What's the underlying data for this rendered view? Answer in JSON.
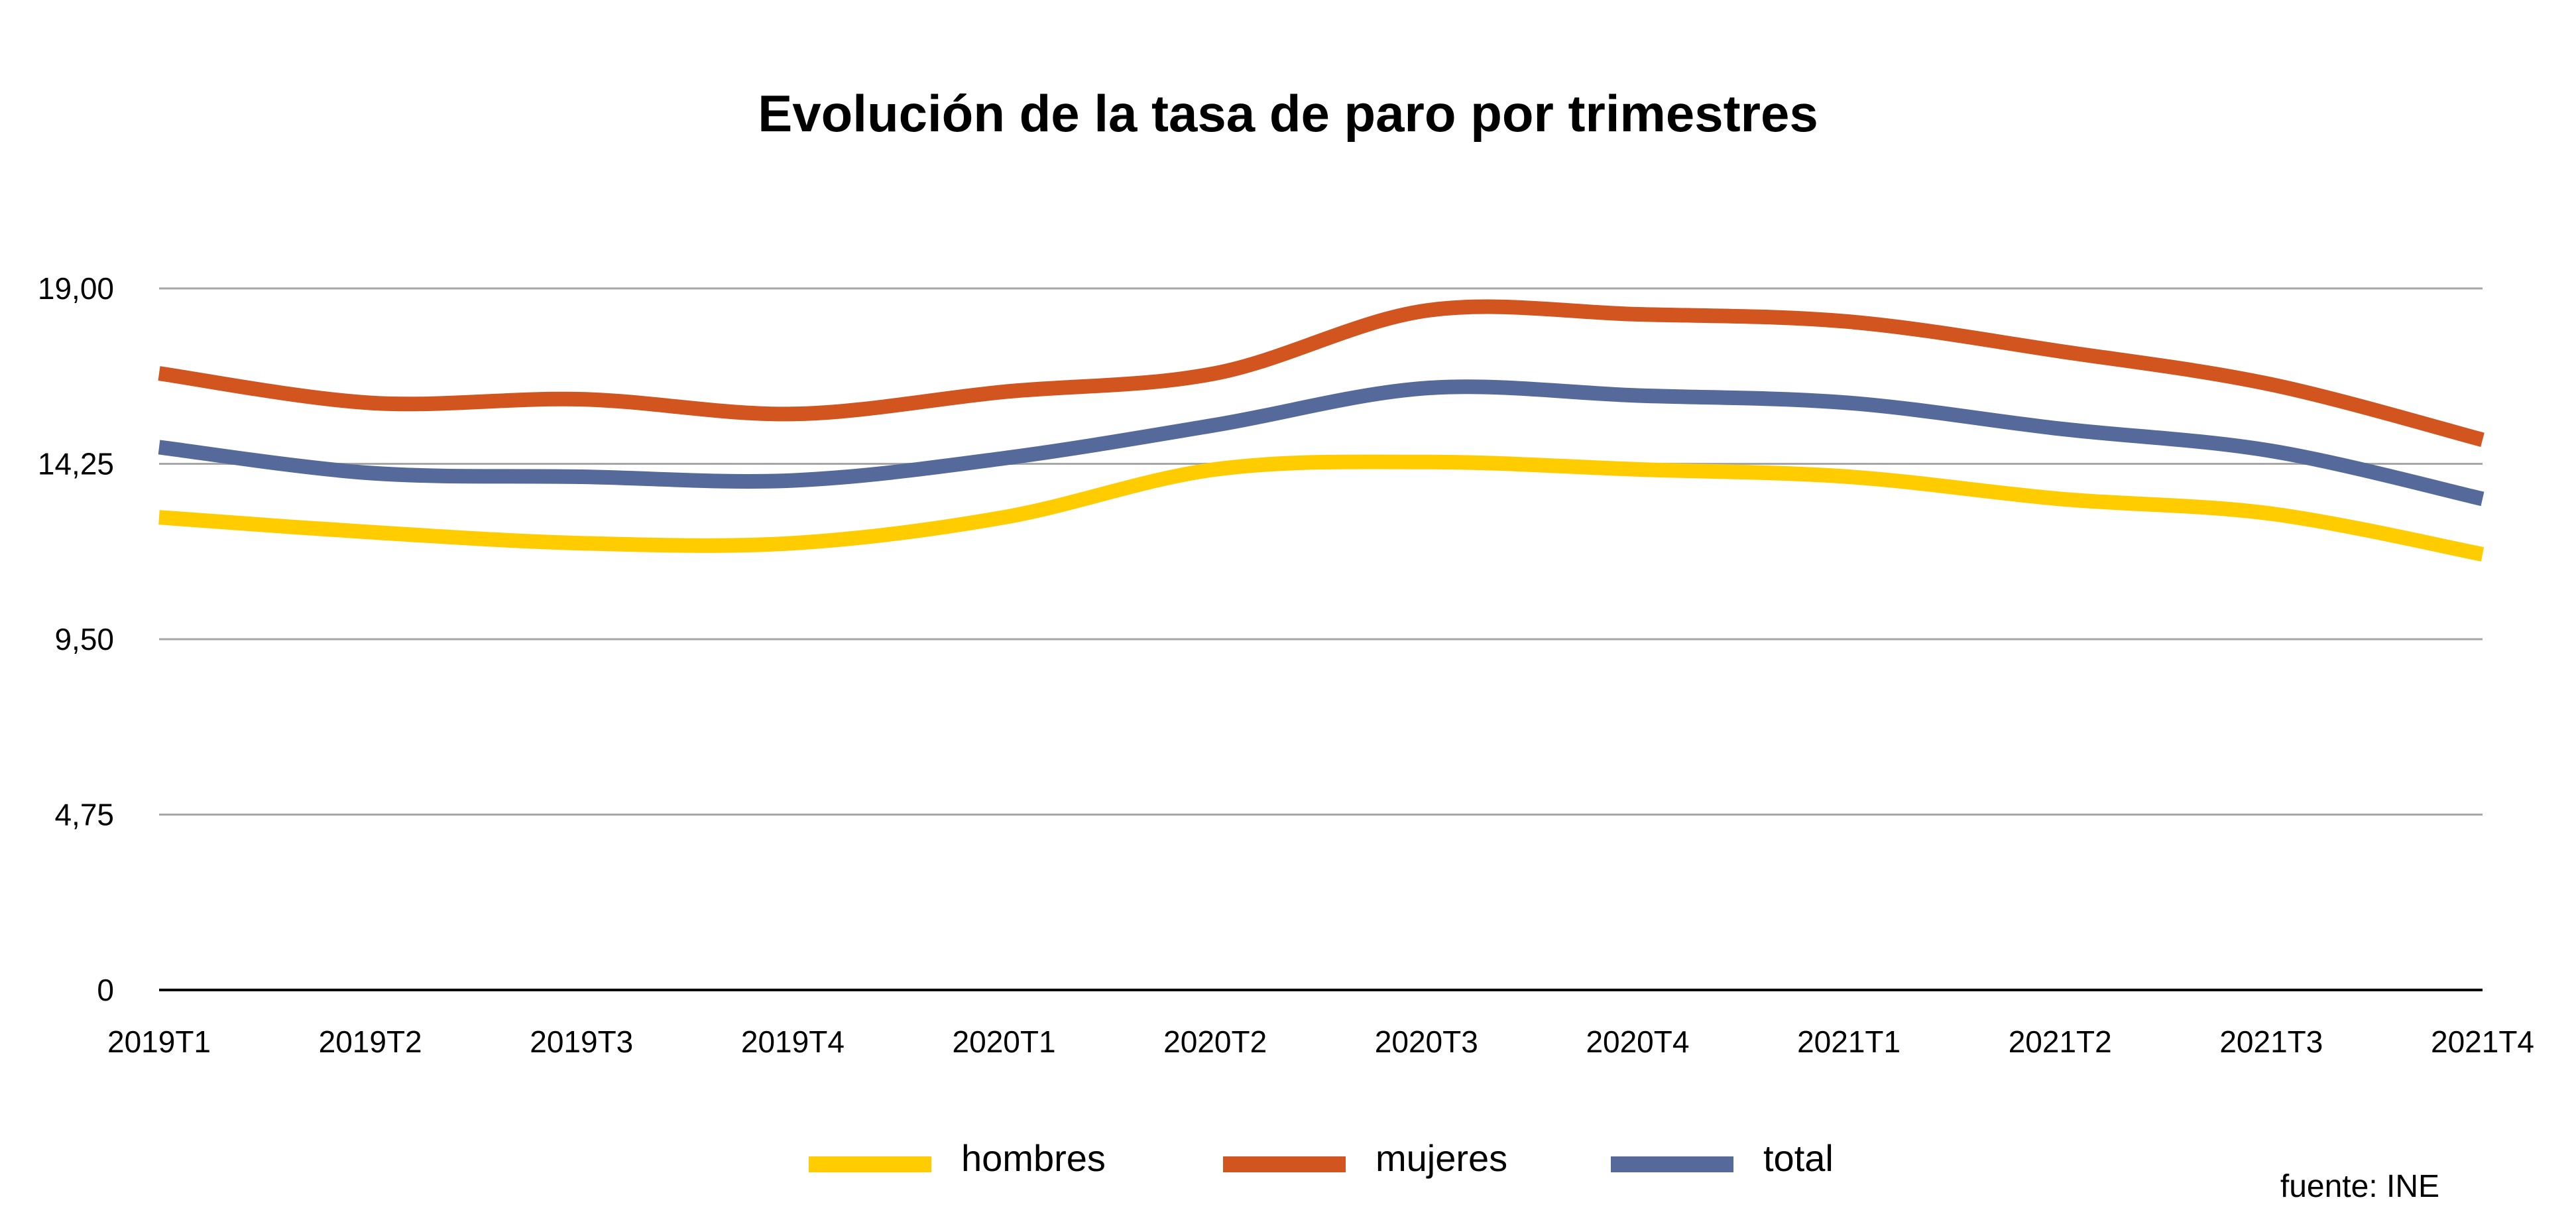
{
  "chart_data": {
    "type": "line",
    "title": "Evolución de la tasa de paro por trimestres",
    "source": "fuente: INE",
    "categories": [
      "2019T1",
      "2019T2",
      "2019T3",
      "2019T4",
      "2020T1",
      "2020T2",
      "2020T3",
      "2020T4",
      "2021T1",
      "2021T2",
      "2021T3",
      "2021T4"
    ],
    "ylim": [
      0,
      19
    ],
    "yticks": [
      {
        "value": 0,
        "label": "0"
      },
      {
        "value": 4.75,
        "label": "4,75"
      },
      {
        "value": 9.5,
        "label": "9,50"
      },
      {
        "value": 14.25,
        "label": "14,25"
      },
      {
        "value": 19,
        "label": "19,00"
      }
    ],
    "grid": true,
    "legend_position": "bottom",
    "series": [
      {
        "name": "hombres",
        "color": "#FFCC00",
        "values": [
          12.8,
          12.4,
          12.1,
          12.1,
          12.8,
          14.1,
          14.3,
          14.1,
          13.9,
          13.3,
          12.9,
          11.8
        ]
      },
      {
        "name": "mujeres",
        "color": "#D2541E",
        "values": [
          16.7,
          15.9,
          16.0,
          15.6,
          16.2,
          16.7,
          18.4,
          18.3,
          18.1,
          17.3,
          16.4,
          14.9
        ]
      },
      {
        "name": "total",
        "color": "#556A9A",
        "values": [
          14.7,
          14.0,
          13.9,
          13.8,
          14.4,
          15.3,
          16.3,
          16.1,
          15.9,
          15.2,
          14.6,
          13.3
        ]
      }
    ]
  }
}
